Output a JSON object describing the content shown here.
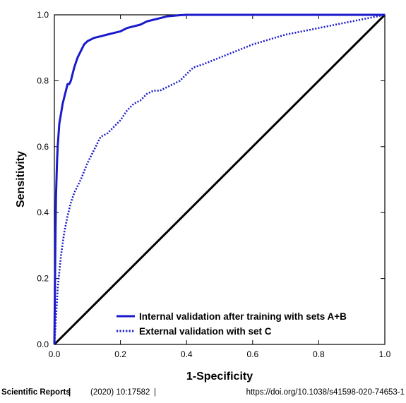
{
  "chart_data": {
    "type": "line",
    "xlabel": "1-Specificity",
    "ylabel": "Sensitivity",
    "xlim": [
      0,
      1
    ],
    "ylim": [
      0,
      1
    ],
    "x_ticks": [
      "0.0",
      "0.2",
      "0.4",
      "0.6",
      "0.8",
      "1.0"
    ],
    "y_ticks": [
      "0.0",
      "0.2",
      "0.4",
      "0.6",
      "0.8",
      "1.0"
    ],
    "grid": false,
    "legend_position": "bottom-right",
    "series": [
      {
        "name": "Internal validation after training with sets A+B",
        "style": "solid",
        "color": "#1a1acc",
        "x": [
          0,
          0.003,
          0.005,
          0.008,
          0.01,
          0.015,
          0.02,
          0.025,
          0.03,
          0.035,
          0.04,
          0.045,
          0.05,
          0.055,
          0.06,
          0.07,
          0.08,
          0.09,
          0.1,
          0.12,
          0.14,
          0.16,
          0.18,
          0.2,
          0.22,
          0.24,
          0.26,
          0.28,
          0.3,
          0.32,
          0.34,
          0.36,
          0.38,
          0.4,
          1.0
        ],
        "y": [
          0,
          0.3,
          0.45,
          0.55,
          0.6,
          0.67,
          0.7,
          0.73,
          0.75,
          0.77,
          0.79,
          0.79,
          0.8,
          0.82,
          0.84,
          0.87,
          0.89,
          0.91,
          0.92,
          0.93,
          0.935,
          0.94,
          0.945,
          0.95,
          0.96,
          0.965,
          0.97,
          0.98,
          0.985,
          0.99,
          0.995,
          0.997,
          0.999,
          1.0,
          1.0
        ]
      },
      {
        "name": "External validation with set C",
        "style": "dotted",
        "color": "#1a1acc",
        "x": [
          0,
          0.005,
          0.01,
          0.015,
          0.02,
          0.03,
          0.04,
          0.05,
          0.06,
          0.07,
          0.08,
          0.1,
          0.12,
          0.14,
          0.16,
          0.18,
          0.2,
          0.22,
          0.24,
          0.26,
          0.28,
          0.3,
          0.32,
          0.34,
          0.36,
          0.38,
          0.4,
          0.42,
          0.45,
          0.5,
          0.55,
          0.6,
          0.65,
          0.7,
          0.75,
          0.8,
          0.85,
          0.9,
          0.95,
          1.0
        ],
        "y": [
          0,
          0.08,
          0.17,
          0.22,
          0.27,
          0.34,
          0.39,
          0.43,
          0.46,
          0.48,
          0.5,
          0.55,
          0.59,
          0.63,
          0.64,
          0.66,
          0.68,
          0.71,
          0.73,
          0.74,
          0.76,
          0.77,
          0.77,
          0.78,
          0.79,
          0.8,
          0.82,
          0.84,
          0.85,
          0.87,
          0.89,
          0.91,
          0.925,
          0.94,
          0.95,
          0.96,
          0.97,
          0.98,
          0.99,
          1.0
        ]
      },
      {
        "name": "",
        "style": "reference",
        "color": "#000000",
        "x": [
          0,
          1
        ],
        "y": [
          0,
          1
        ]
      }
    ]
  },
  "footer": {
    "journal": "Scientific Reports",
    "separator": "|",
    "citation": "(2020) 10:17582",
    "doi": "https://doi.org/10.1038/s41598-020-74653-1"
  }
}
